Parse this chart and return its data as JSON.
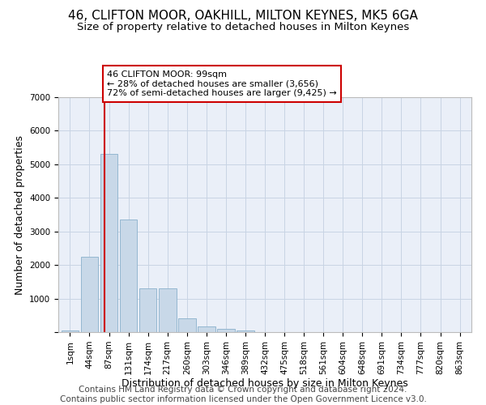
{
  "title": "46, CLIFTON MOOR, OAKHILL, MILTON KEYNES, MK5 6GA",
  "subtitle": "Size of property relative to detached houses in Milton Keynes",
  "xlabel": "Distribution of detached houses by size in Milton Keynes",
  "ylabel": "Number of detached properties",
  "categories": [
    "1sqm",
    "44sqm",
    "87sqm",
    "131sqm",
    "174sqm",
    "217sqm",
    "260sqm",
    "303sqm",
    "346sqm",
    "389sqm",
    "432sqm",
    "475sqm",
    "518sqm",
    "561sqm",
    "604sqm",
    "648sqm",
    "691sqm",
    "734sqm",
    "777sqm",
    "820sqm",
    "863sqm"
  ],
  "bar_values": [
    50,
    2250,
    5300,
    3350,
    1300,
    1300,
    420,
    170,
    100,
    50,
    0,
    0,
    0,
    0,
    0,
    0,
    0,
    0,
    0,
    0,
    0
  ],
  "bar_color": "#c8d8e8",
  "bar_edge_color": "#8ab0cc",
  "grid_color": "#c8d4e4",
  "background_color": "#eaeff8",
  "vline_color": "#cc0000",
  "vline_pos": 1.75,
  "annotation_text": "46 CLIFTON MOOR: 99sqm\n← 28% of detached houses are smaller (3,656)\n72% of semi-detached houses are larger (9,425) →",
  "annotation_box_color": "#ffffff",
  "annotation_border_color": "#cc0000",
  "ylim": [
    0,
    7000
  ],
  "yticks": [
    0,
    1000,
    2000,
    3000,
    4000,
    5000,
    6000,
    7000
  ],
  "footer_text": "Contains HM Land Registry data © Crown copyright and database right 2024.\nContains public sector information licensed under the Open Government Licence v3.0.",
  "title_fontsize": 11,
  "subtitle_fontsize": 9.5,
  "label_fontsize": 9,
  "tick_fontsize": 7.5,
  "footer_fontsize": 7.5
}
